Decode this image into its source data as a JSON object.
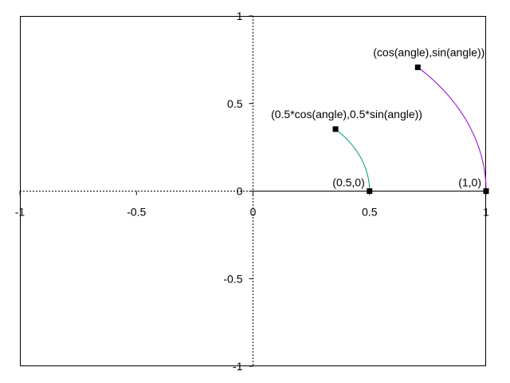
{
  "chart_data": {
    "type": "line",
    "xlim": [
      -1,
      1
    ],
    "ylim": [
      -1,
      1
    ],
    "grid": false,
    "x_ticks": [
      {
        "value": -1,
        "label": "-1"
      },
      {
        "value": -0.5,
        "label": "-0.5"
      },
      {
        "value": 0,
        "label": "0"
      },
      {
        "value": 0.5,
        "label": "0.5"
      },
      {
        "value": 1,
        "label": "1"
      }
    ],
    "y_ticks": [
      {
        "value": -1,
        "label": "-1"
      },
      {
        "value": -0.5,
        "label": "-0.5"
      },
      {
        "value": 0,
        "label": "0"
      },
      {
        "value": 0.5,
        "label": "0.5"
      },
      {
        "value": 1,
        "label": "1"
      }
    ],
    "series": [
      {
        "radius": 0.5,
        "angle_range_deg": [
          0,
          45
        ],
        "color": "#009980",
        "points": [
          {
            "x": 0.5,
            "y": 0,
            "label": "(0.5,0)"
          },
          {
            "x": 0.354,
            "y": 0.354,
            "label": "(0.5*cos(angle),0.5*sin(angle))"
          }
        ]
      },
      {
        "radius": 1,
        "angle_range_deg": [
          0,
          45
        ],
        "color": "#9400d3",
        "points": [
          {
            "x": 1,
            "y": 0,
            "label": "(1,0)"
          },
          {
            "x": 0.707,
            "y": 0.707,
            "label": "(cos(angle),sin(angle))"
          }
        ]
      }
    ]
  }
}
